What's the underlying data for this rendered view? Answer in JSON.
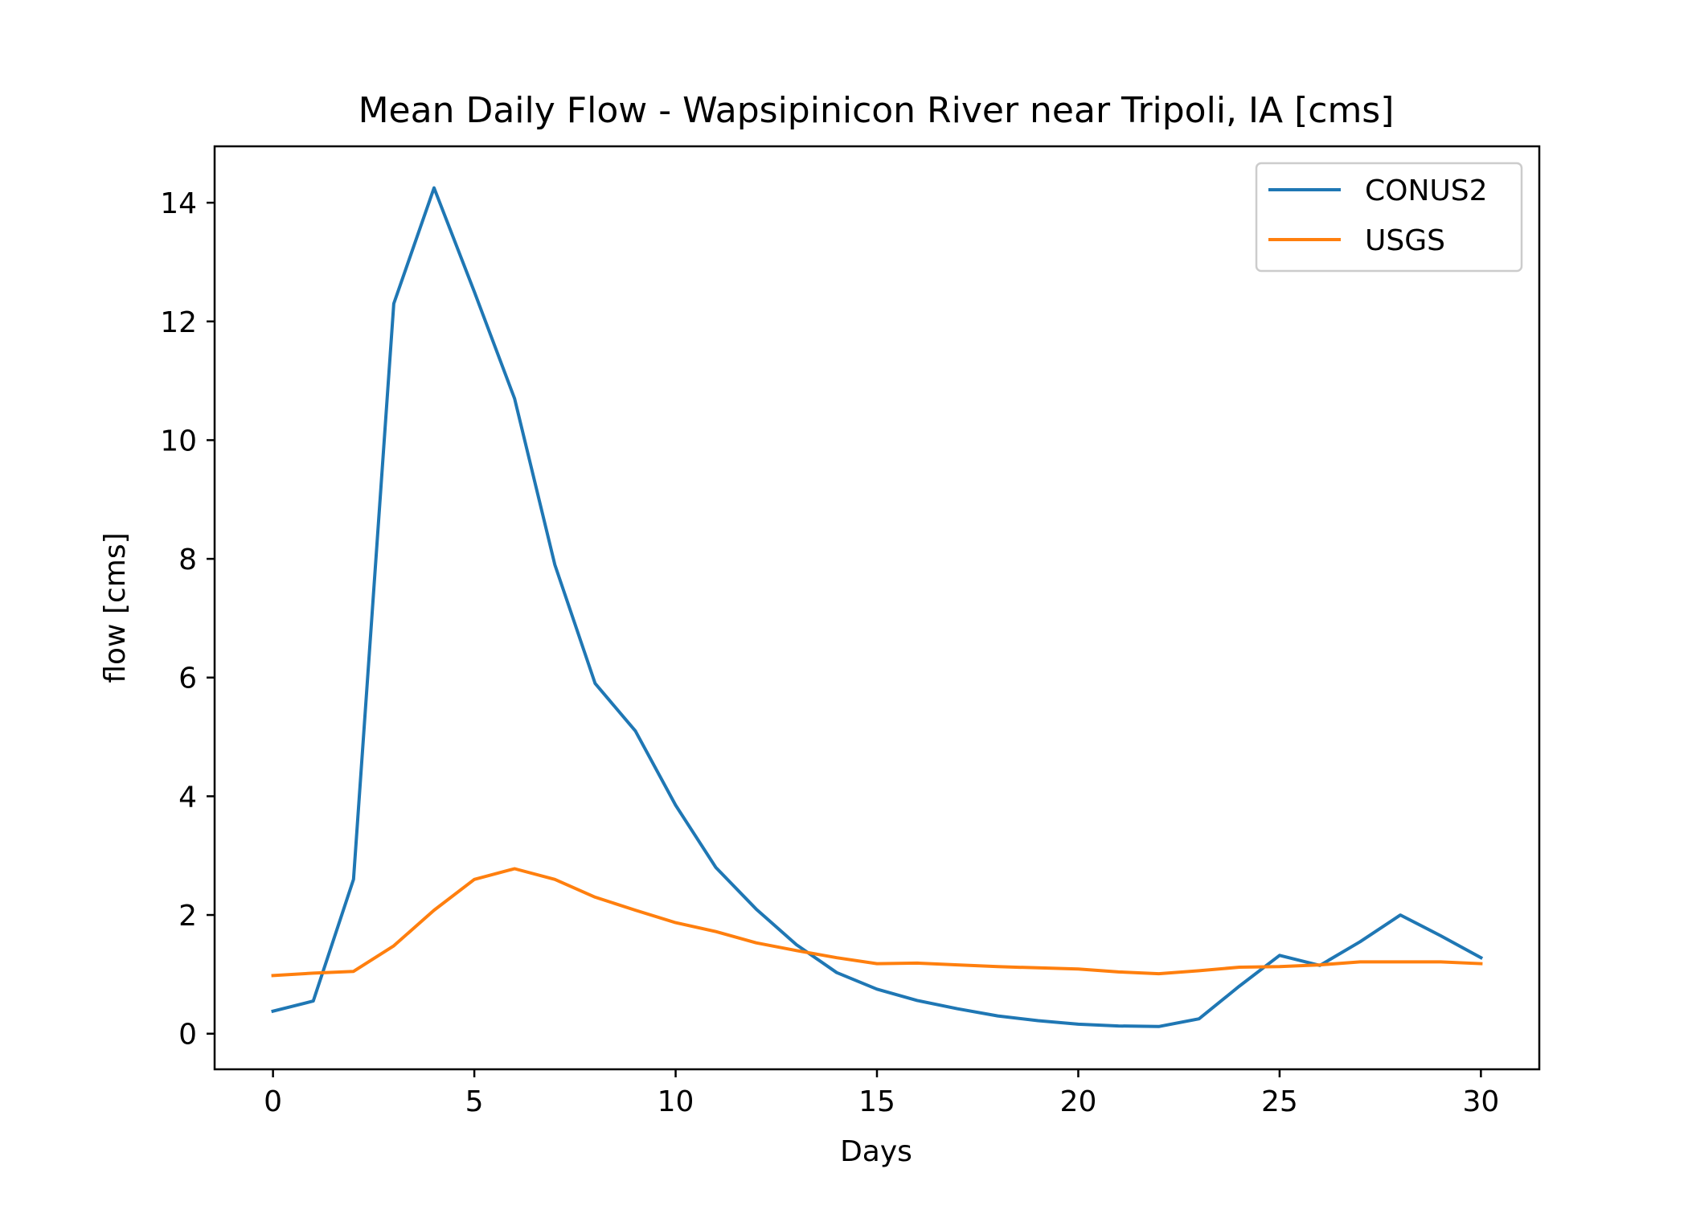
{
  "chart_data": {
    "type": "line",
    "title": "Mean Daily Flow - Wapsipinicon River near Tripoli, IA [cms]",
    "xlabel": "Days",
    "ylabel": "flow [cms]",
    "xlim": [
      -1.45,
      31.45
    ],
    "ylim": [
      -0.6,
      14.95
    ],
    "xticks": [
      0,
      5,
      10,
      15,
      20,
      25,
      30
    ],
    "yticks": [
      0,
      2,
      4,
      6,
      8,
      10,
      12,
      14
    ],
    "grid": false,
    "legend_position": "top-right",
    "x": [
      0,
      1,
      2,
      3,
      4,
      5,
      6,
      7,
      8,
      9,
      10,
      11,
      12,
      13,
      14,
      15,
      16,
      17,
      18,
      19,
      20,
      21,
      22,
      23,
      24,
      25,
      26,
      27,
      28,
      29,
      30
    ],
    "series": [
      {
        "name": "CONUS2",
        "color": "#1f77b4",
        "values": [
          0.38,
          0.55,
          2.6,
          12.3,
          14.25,
          12.5,
          10.7,
          7.9,
          5.9,
          5.1,
          3.85,
          2.8,
          2.1,
          1.5,
          1.03,
          0.75,
          0.56,
          0.42,
          0.3,
          0.22,
          0.16,
          0.13,
          0.12,
          0.25,
          0.8,
          1.32,
          1.15,
          1.55,
          2.0,
          1.65,
          1.28
        ]
      },
      {
        "name": "USGS",
        "color": "#ff7f0e",
        "values": [
          0.98,
          1.02,
          1.05,
          1.48,
          2.08,
          2.6,
          2.78,
          2.6,
          2.3,
          2.08,
          1.87,
          1.72,
          1.53,
          1.4,
          1.28,
          1.18,
          1.19,
          1.16,
          1.13,
          1.11,
          1.09,
          1.04,
          1.01,
          1.06,
          1.12,
          1.13,
          1.16,
          1.21,
          1.21,
          1.21,
          1.18
        ]
      }
    ]
  }
}
